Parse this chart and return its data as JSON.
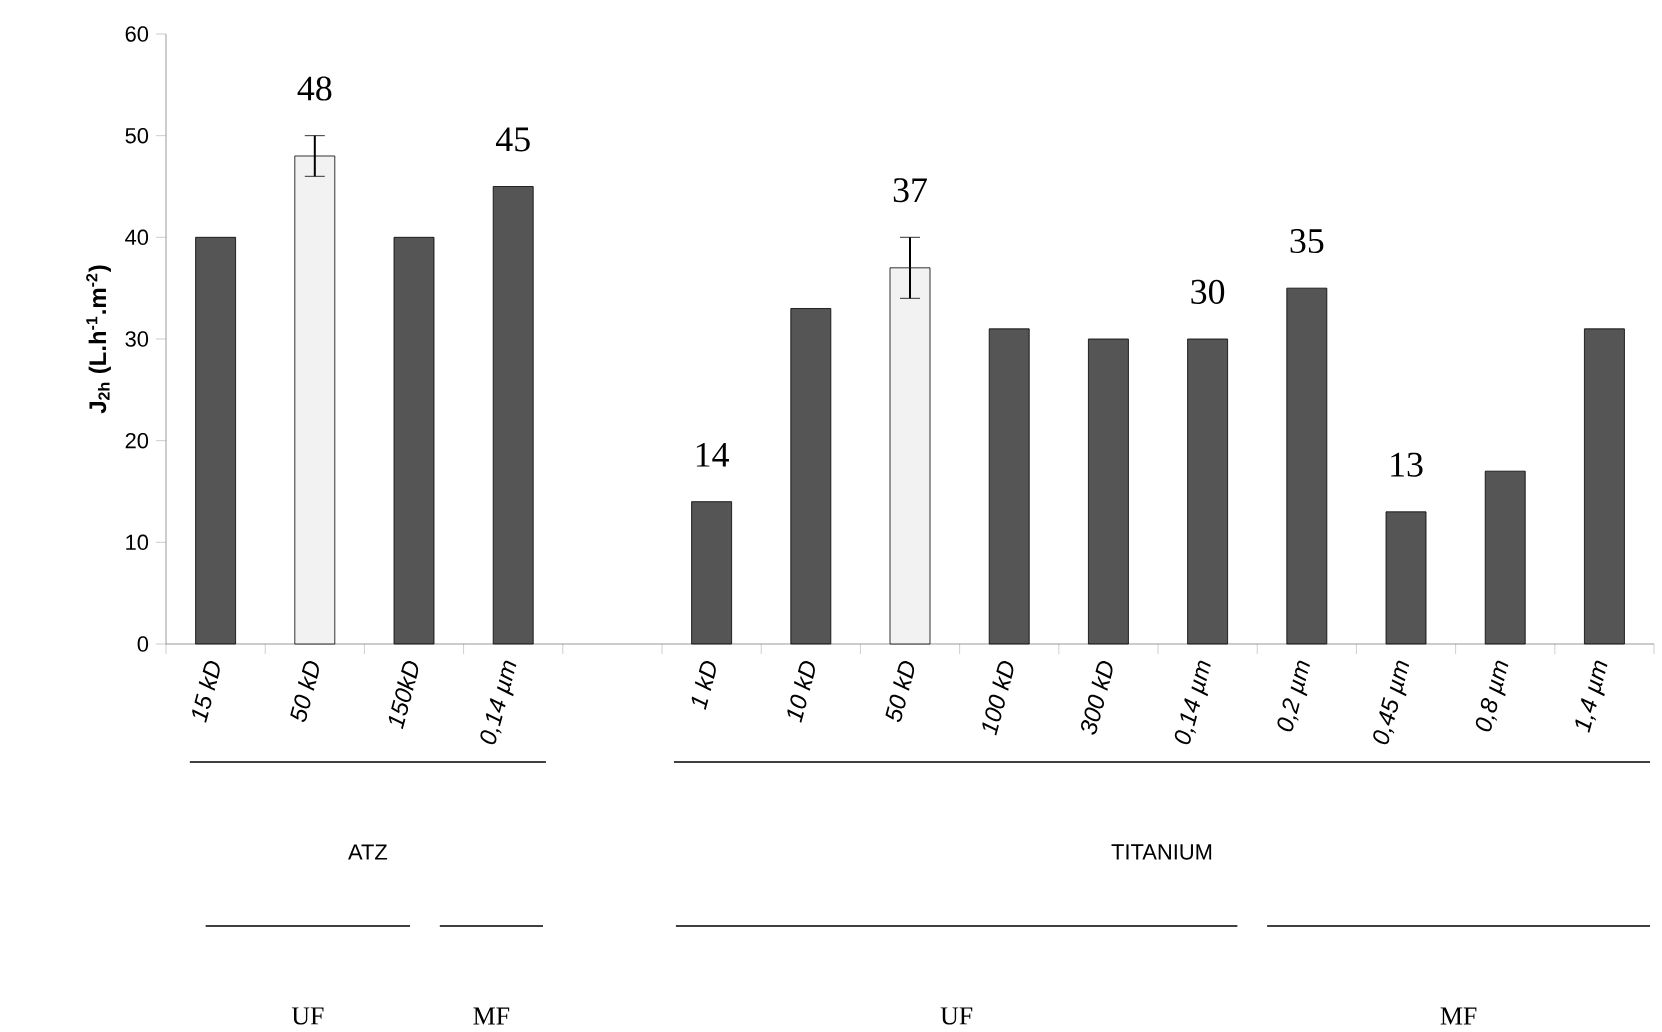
{
  "chart_data": {
    "type": "bar",
    "ylabel": "J$_{2h}$ (L.h$^{-1}$.m$^{-2}$)",
    "categories": [
      "15 kD",
      "50 kD",
      "150kD",
      "0,14 µm",
      null,
      "1 kD",
      "10 kD",
      "50 kD",
      "100 kD",
      "300 kD",
      "0,14 µm",
      "0,2 µm",
      "0,45 µm",
      "0,8 µm",
      "1,4 µm"
    ],
    "values": [
      40,
      48,
      40,
      45,
      null,
      14,
      33,
      37,
      31,
      30,
      30,
      35,
      13,
      17,
      31
    ],
    "colors": [
      "#555555",
      "#f2f2f2",
      "#555555",
      "#555555",
      "#555555",
      "#555555",
      "#555555",
      "#f2f2f2",
      "#555555",
      "#555555",
      "#555555",
      "#555555",
      "#555555",
      "#555555",
      "#555555"
    ],
    "errors": [
      null,
      2,
      null,
      null,
      null,
      null,
      null,
      3,
      null,
      null,
      null,
      null,
      null,
      null,
      null
    ],
    "value_labels": [
      null,
      "48",
      null,
      "45",
      null,
      "14",
      null,
      "37",
      null,
      null,
      "30",
      "35",
      "13",
      null,
      null
    ],
    "ylim": [
      0,
      60
    ],
    "yticks": [
      0,
      10,
      20,
      30,
      40,
      50,
      60
    ],
    "annotations": [
      "ATZ",
      "TITANIUM",
      "UF",
      "MF",
      "UF",
      "MF"
    ]
  }
}
